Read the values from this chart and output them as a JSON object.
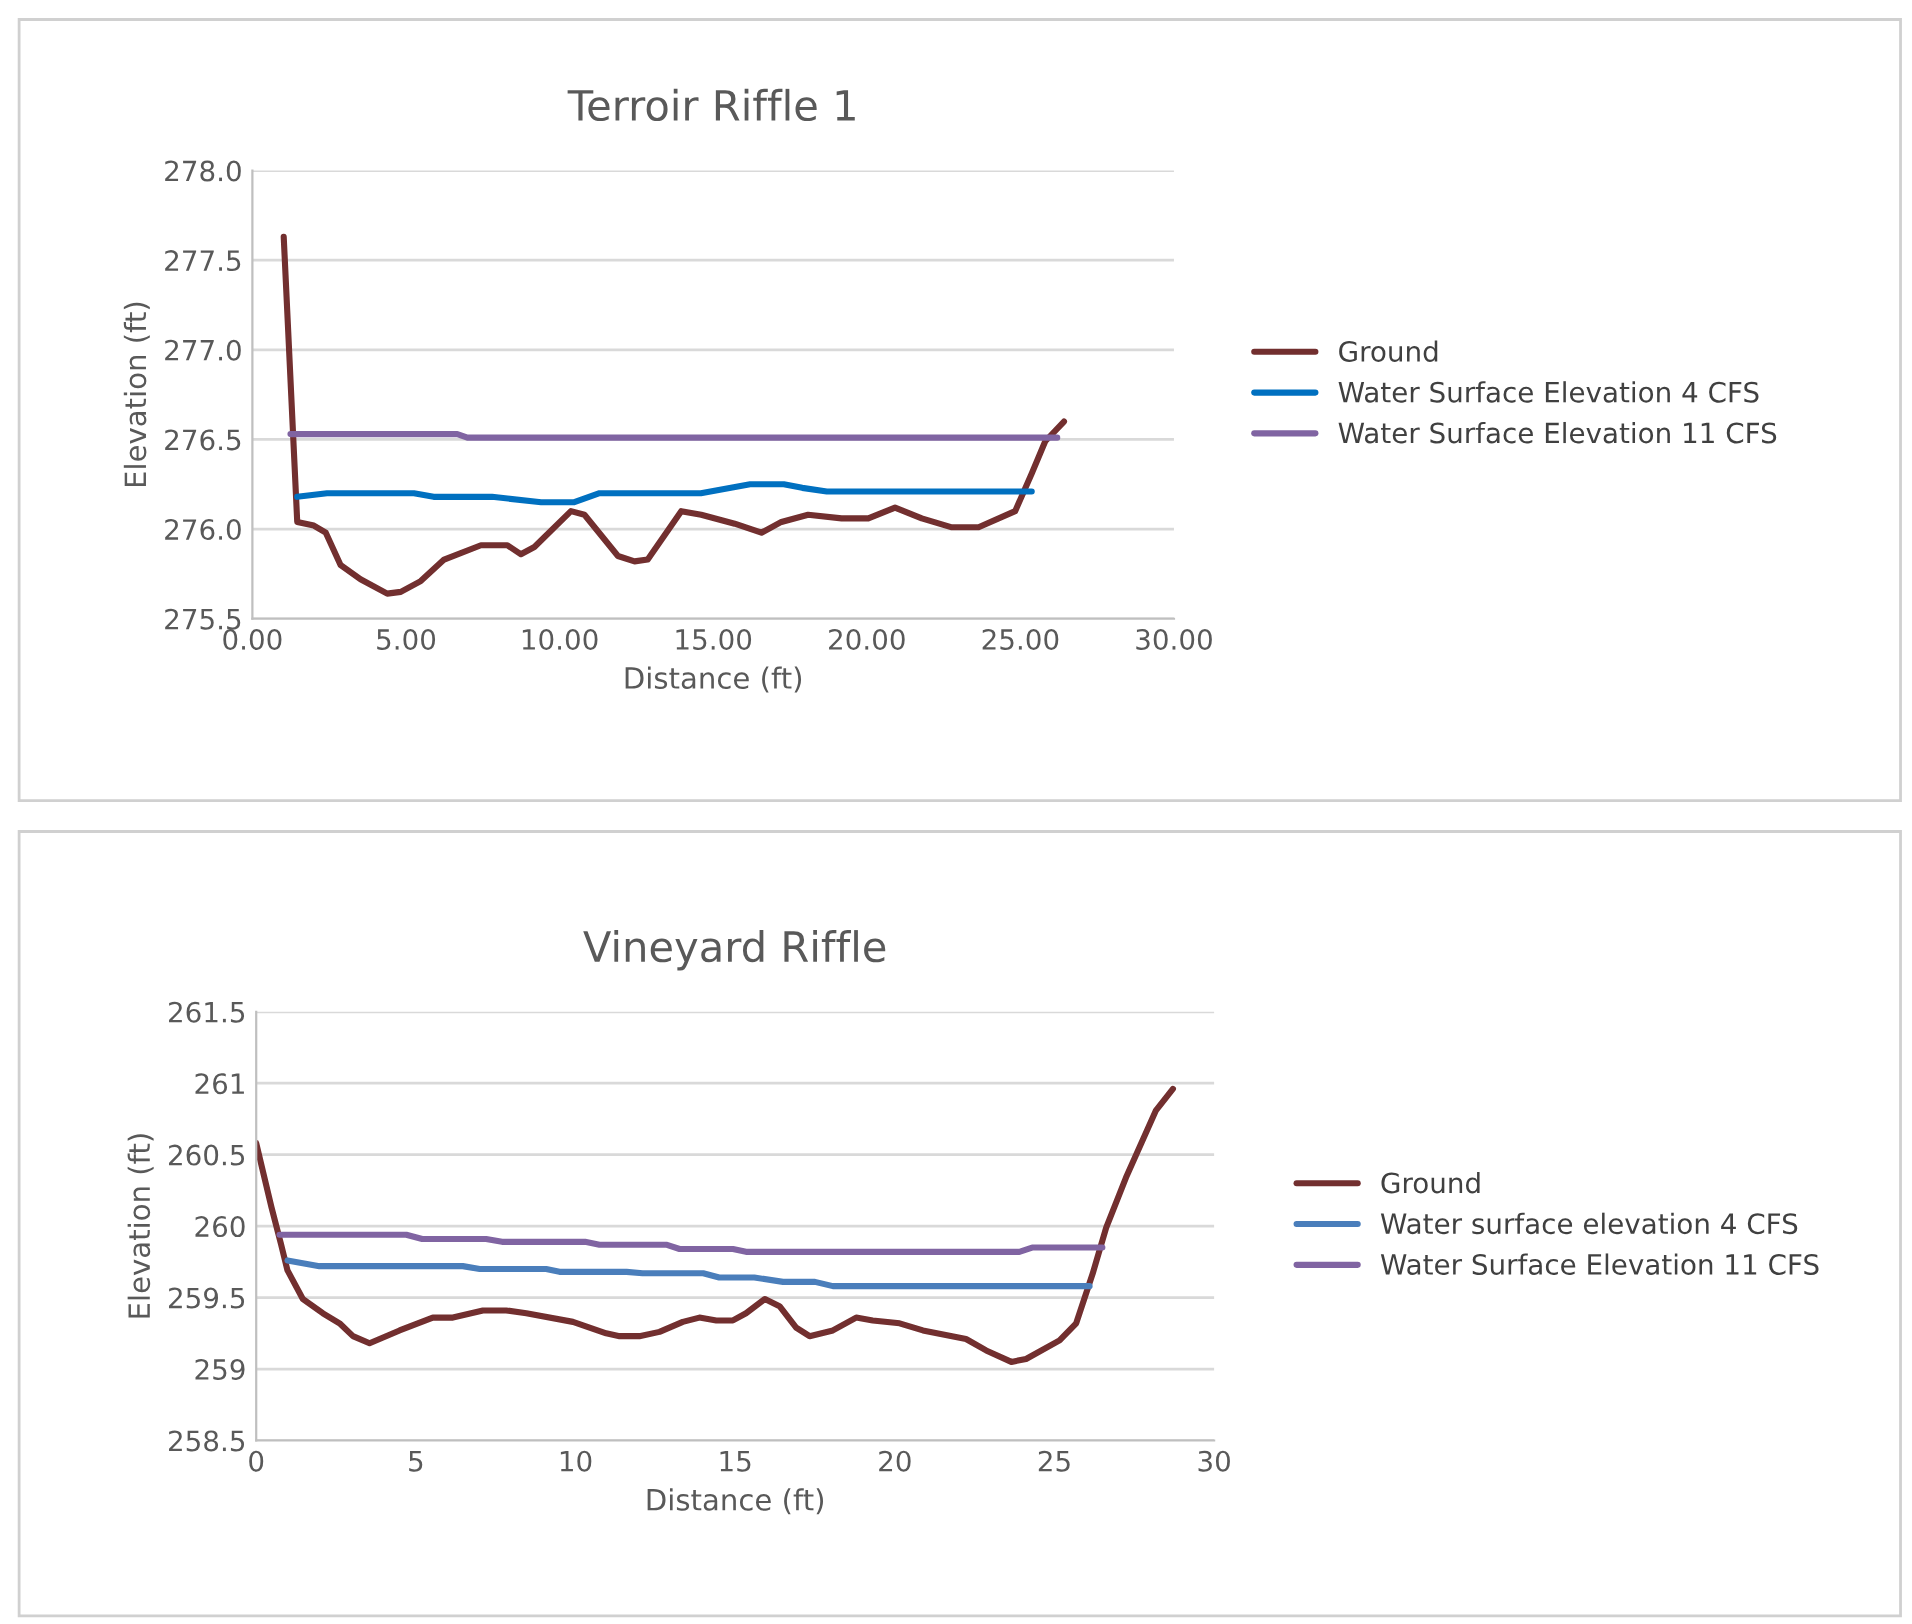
{
  "chart_data": [
    {
      "type": "line",
      "title": "Terroir Riffle 1",
      "xlabel": "Distance (ft)",
      "ylabel": "Elevation (ft)",
      "xlim": [
        0,
        30
      ],
      "xticks": [
        {
          "value": 0,
          "label": "0.00"
        },
        {
          "value": 5,
          "label": "5.00"
        },
        {
          "value": 10,
          "label": "10.00"
        },
        {
          "value": 15,
          "label": "15.00"
        },
        {
          "value": 20,
          "label": "20.00"
        },
        {
          "value": 25,
          "label": "25.00"
        },
        {
          "value": 30,
          "label": "30.00"
        }
      ],
      "ylim": [
        275.5,
        278.0
      ],
      "yticks": [
        {
          "value": 275.5,
          "label": "275.5"
        },
        {
          "value": 276.0,
          "label": "276.0"
        },
        {
          "value": 276.5,
          "label": "276.5"
        },
        {
          "value": 277.0,
          "label": "277.0"
        },
        {
          "value": 277.5,
          "label": "277.5"
        },
        {
          "value": 278.0,
          "label": "278.0"
        }
      ],
      "grid": "y",
      "legend": "right",
      "marker": "none",
      "line_style": "solid",
      "series": [
        {
          "name": "Ground",
          "color": "#722f2f",
          "x": [
            1.02,
            1.46,
            2.0,
            2.39,
            2.87,
            3.52,
            4.39,
            4.83,
            5.48,
            6.24,
            7.44,
            8.3,
            8.74,
            9.18,
            10.37,
            10.81,
            11.9,
            12.44,
            12.87,
            13.96,
            14.61,
            15.7,
            16.57,
            17.22,
            18.09,
            19.18,
            20.05,
            20.92,
            21.79,
            22.77,
            23.64,
            24.83,
            25.37,
            25.81,
            26.42
          ],
          "values": [
            277.63,
            276.04,
            276.02,
            275.98,
            275.8,
            275.72,
            275.64,
            275.65,
            275.71,
            275.83,
            275.91,
            275.91,
            275.86,
            275.9,
            276.1,
            276.08,
            275.85,
            275.82,
            275.83,
            276.1,
            276.08,
            276.03,
            275.98,
            276.04,
            276.08,
            276.06,
            276.06,
            276.12,
            276.06,
            276.01,
            276.01,
            276.1,
            276.31,
            276.49,
            276.6
          ]
        },
        {
          "name": "Water Surface Elevation 4 CFS",
          "color": "#0070c0",
          "x": [
            1.46,
            2.43,
            5.26,
            5.9,
            7.8,
            9.4,
            10.48,
            11.3,
            14.6,
            16.2,
            17.3,
            17.9,
            18.7,
            25.37
          ],
          "values": [
            276.18,
            276.2,
            276.2,
            276.18,
            276.18,
            276.15,
            276.15,
            276.2,
            276.2,
            276.25,
            276.25,
            276.23,
            276.21,
            276.21
          ]
        },
        {
          "name": "Water Surface Elevation 11 CFS",
          "color": "#8064a2",
          "x": [
            1.24,
            6.67,
            7.0,
            26.2
          ],
          "values": [
            276.53,
            276.53,
            276.51,
            276.51
          ]
        }
      ]
    },
    {
      "type": "line",
      "title": "Vineyard Riffle",
      "xlabel": "Distance (ft)",
      "ylabel": "Elevation (ft)",
      "xlim": [
        0,
        30
      ],
      "xticks": [
        0,
        5,
        10,
        15,
        20,
        25,
        30
      ],
      "ylim": [
        258.5,
        261.5
      ],
      "yticks": [
        258.5,
        259,
        259.5,
        260,
        260.5,
        261,
        261.5
      ],
      "grid": "y",
      "legend": "right",
      "marker": "none",
      "line_style": "solid",
      "series": [
        {
          "name": "Ground",
          "color": "#722f2f",
          "x": [
            0,
            0.48,
            0.77,
            0.98,
            1.46,
            2.09,
            2.61,
            3.03,
            3.55,
            4.49,
            5.53,
            6.16,
            7.1,
            7.83,
            8.46,
            9.92,
            10.96,
            11.38,
            12.0,
            12.63,
            13.36,
            13.88,
            14.41,
            14.93,
            15.34,
            15.93,
            16.39,
            16.91,
            17.33,
            18.06,
            18.79,
            19.31,
            20.15,
            20.88,
            22.23,
            22.86,
            23.65,
            24.11,
            25.16,
            25.68,
            26.2,
            26.62,
            27.24,
            28.18,
            28.71
          ],
          "values": [
            260.58,
            260.13,
            259.88,
            259.69,
            259.49,
            259.39,
            259.32,
            259.23,
            259.18,
            259.27,
            259.36,
            259.36,
            259.41,
            259.41,
            259.39,
            259.33,
            259.25,
            259.23,
            259.23,
            259.26,
            259.33,
            259.36,
            259.34,
            259.34,
            259.39,
            259.49,
            259.44,
            259.29,
            259.23,
            259.27,
            259.36,
            259.34,
            259.32,
            259.27,
            259.21,
            259.13,
            259.05,
            259.07,
            259.2,
            259.32,
            259.67,
            259.99,
            260.34,
            260.81,
            260.96
          ]
        },
        {
          "name": "Water surface elevation 4 CFS",
          "color": "#4a7ebb",
          "x": [
            0.98,
            1.98,
            6.47,
            7.0,
            9.08,
            9.5,
            11.6,
            12.1,
            14.0,
            14.5,
            15.6,
            16.5,
            17.5,
            18.06,
            26.1
          ],
          "values": [
            259.76,
            259.72,
            259.72,
            259.7,
            259.7,
            259.68,
            259.68,
            259.67,
            259.67,
            259.64,
            259.64,
            259.61,
            259.61,
            259.58,
            259.58
          ]
        },
        {
          "name": "Water Surface Elevation 11 CFS",
          "color": "#8064a2",
          "x": [
            0.73,
            4.7,
            5.2,
            7.2,
            7.7,
            10.3,
            10.75,
            12.84,
            13.26,
            14.93,
            15.34,
            23.9,
            24.3,
            26.5
          ],
          "values": [
            259.94,
            259.94,
            259.91,
            259.91,
            259.89,
            259.89,
            259.87,
            259.87,
            259.84,
            259.84,
            259.82,
            259.82,
            259.85,
            259.85
          ]
        }
      ]
    }
  ]
}
